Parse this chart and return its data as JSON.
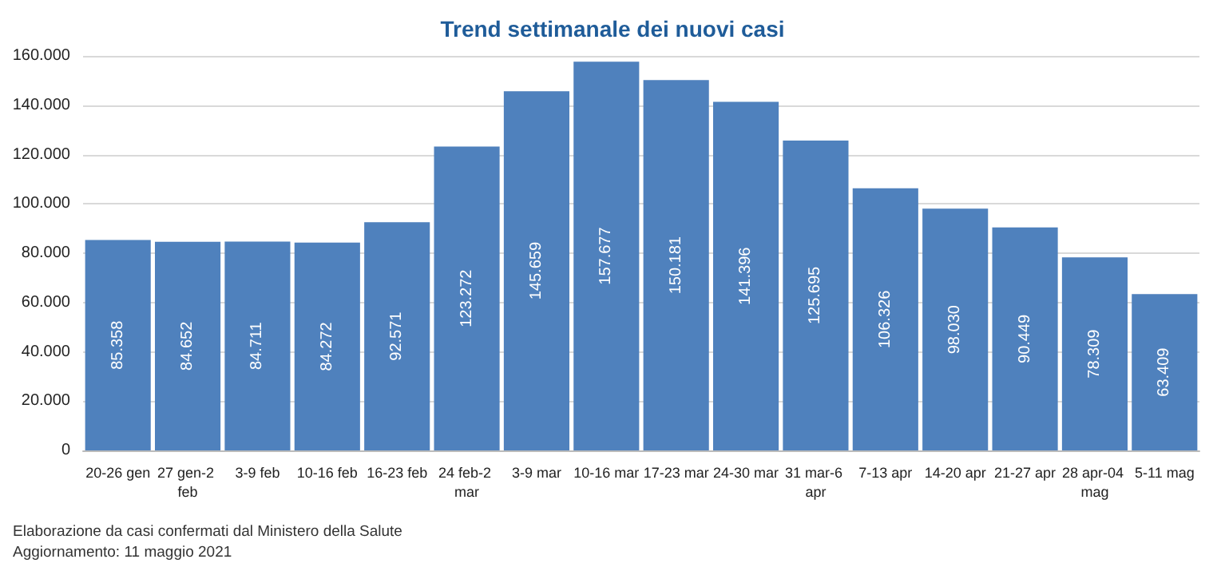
{
  "chart_data": {
    "type": "bar",
    "title": "Trend settimanale dei nuovi casi",
    "categories": [
      "20-26 gen",
      "27 gen-2 feb",
      "3-9 feb",
      "10-16 feb",
      "16-23 feb",
      "24 feb-2 mar",
      "3-9 mar",
      "10-16 mar",
      "17-23 mar",
      "24-30 mar",
      "31 mar-6 apr",
      "7-13 apr",
      "14-20 apr",
      "21-27 apr",
      "28 apr-04 mag",
      "5-11 mag"
    ],
    "values": [
      85358,
      84652,
      84711,
      84272,
      92571,
      123272,
      145659,
      157677,
      150181,
      141396,
      125695,
      106326,
      98030,
      90449,
      78309,
      63409
    ],
    "value_labels": [
      "85.358",
      "84.652",
      "84.711",
      "84.272",
      "92.571",
      "123.272",
      "145.659",
      "157.677",
      "150.181",
      "141.396",
      "125.695",
      "106.326",
      "98.030",
      "90.449",
      "78.309",
      "63.409"
    ],
    "color": "#4f81bd",
    "ylim": [
      0,
      160000
    ],
    "yticks": [
      {
        "value": 0,
        "label": "0"
      },
      {
        "value": 20000,
        "label": "20.000"
      },
      {
        "value": 40000,
        "label": "40.000"
      },
      {
        "value": 60000,
        "label": "60.000"
      },
      {
        "value": 80000,
        "label": "80.000"
      },
      {
        "value": 100000,
        "label": "100.000"
      },
      {
        "value": 120000,
        "label": "120.000"
      },
      {
        "value": 140000,
        "label": "140.000"
      },
      {
        "value": 160000,
        "label": "160.000"
      }
    ],
    "grid": "y",
    "annotations": [
      "Elaborazione da casi confermati dal Ministero della Salute",
      "Aggiornamento: 11 maggio 2021"
    ]
  }
}
